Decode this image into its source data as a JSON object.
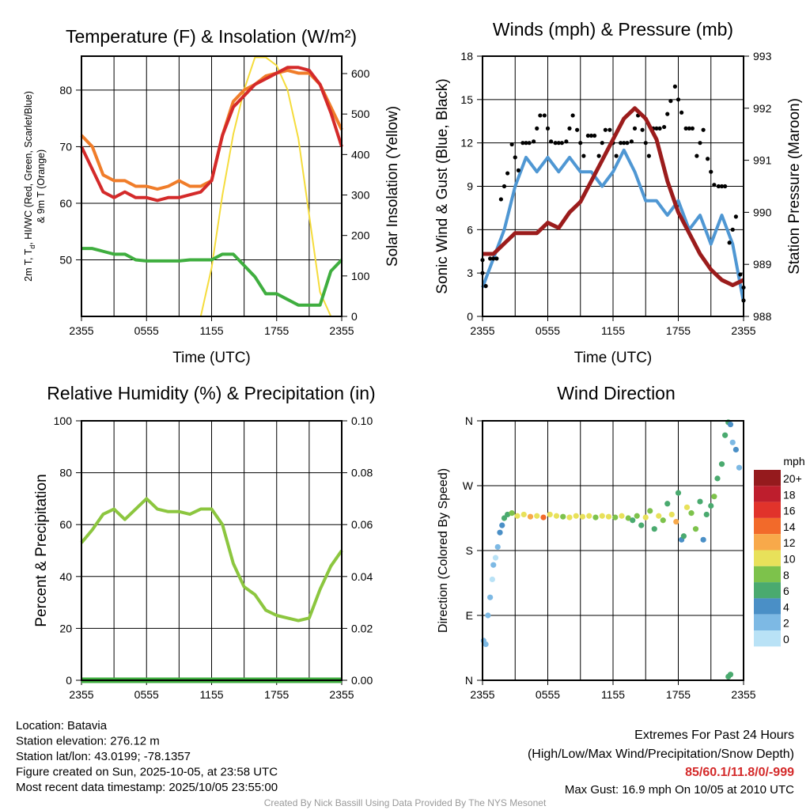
{
  "chart_data": [
    {
      "type": "line",
      "title": "Temperature (F) & Insolation (W/m²)",
      "xlabel": "Time (UTC)",
      "ylabel_parts": [
        "2m T, T",
        "d",
        ", HI/WC (Red, Green, Scarlet/Blue)",
        "& 9m T (Orange)"
      ],
      "y2label": "Solar Insolation (Yellow)",
      "x_ticks": [
        "2355",
        "0555",
        "1155",
        "1755",
        "2355"
      ],
      "x_hours": [
        0,
        1,
        2,
        3,
        4,
        5,
        6,
        7,
        8,
        9,
        10,
        11,
        12,
        13,
        14,
        15,
        16,
        17,
        18,
        19,
        20,
        21,
        22,
        23,
        24
      ],
      "ylim": [
        40,
        86
      ],
      "y_ticks": [
        50,
        60,
        70,
        80
      ],
      "y2lim": [
        0,
        643
      ],
      "y2_ticks": [
        0,
        100,
        200,
        300,
        400,
        500,
        600
      ],
      "series": [
        {
          "name": "Solar Insolation",
          "axis": "y2",
          "color": "#f5dc3c",
          "values": [
            0,
            0,
            0,
            0,
            0,
            0,
            0,
            0,
            0,
            0,
            0,
            0,
            120,
            300,
            450,
            560,
            640,
            640,
            620,
            560,
            440,
            250,
            60,
            0,
            0
          ]
        },
        {
          "name": "Dewpoint",
          "axis": "y",
          "color": "#3fae3f",
          "values": [
            52,
            52,
            51.5,
            51,
            51,
            50,
            49.8,
            49.8,
            49.8,
            49.8,
            50,
            50,
            50,
            51,
            51,
            49,
            47,
            44,
            44,
            43,
            42,
            42,
            42,
            48,
            50
          ]
        },
        {
          "name": "9m Temperature",
          "axis": "y",
          "color": "#f07d2a",
          "values": [
            72,
            70,
            65,
            64,
            64,
            63,
            63,
            62.5,
            63,
            64,
            63,
            63,
            64,
            72,
            78,
            80,
            81,
            82.5,
            83,
            83.5,
            83,
            83,
            81,
            77,
            73
          ]
        },
        {
          "name": "2m Temperature",
          "axis": "y",
          "color": "#d42a2a",
          "values": [
            70,
            66,
            62,
            61,
            62,
            61,
            61,
            60.5,
            61,
            61,
            61.5,
            62,
            64,
            72,
            77,
            79,
            81,
            82,
            83,
            84,
            84,
            83.5,
            81,
            76,
            70
          ]
        }
      ]
    },
    {
      "type": "line",
      "title": "Winds (mph) & Pressure (mb)",
      "xlabel": "Time (UTC)",
      "ylabel": "Sonic Wind & Gust (Blue, Black)",
      "y2label": "Station Pressure (Maroon)",
      "x_ticks": [
        "2355",
        "0555",
        "1155",
        "1755",
        "2355"
      ],
      "x_hours": [
        0,
        1,
        2,
        3,
        4,
        5,
        6,
        7,
        8,
        9,
        10,
        11,
        12,
        13,
        14,
        15,
        16,
        17,
        18,
        19,
        20,
        21,
        22,
        23,
        24
      ],
      "ylim": [
        0,
        18
      ],
      "y_ticks": [
        0,
        3,
        6,
        9,
        12,
        15,
        18
      ],
      "y2lim": [
        988,
        993
      ],
      "y2_ticks": [
        988,
        989,
        990,
        991,
        992,
        993
      ],
      "series": [
        {
          "name": "Sonic Wind",
          "axis": "y",
          "color": "#4f97d3",
          "kind": "line",
          "values": [
            2,
            4,
            6,
            9,
            11,
            10,
            11,
            10,
            11,
            10,
            10,
            9,
            10,
            11.5,
            10,
            8,
            8,
            7,
            8,
            6,
            7,
            5,
            7,
            5,
            1
          ]
        },
        {
          "name": "Gust",
          "axis": "y",
          "color": "#000000",
          "kind": "points",
          "values": [
            3,
            4,
            9,
            11,
            12,
            13,
            13,
            12,
            13,
            12,
            12.5,
            12,
            12,
            12,
            13,
            12,
            13,
            14,
            15,
            13,
            12,
            10,
            9,
            6,
            2
          ]
        },
        {
          "name": "Station Pressure",
          "axis": "y2",
          "color": "#9b1c1c",
          "kind": "line",
          "values": [
            989.2,
            989.2,
            989.4,
            989.6,
            989.6,
            989.6,
            989.8,
            989.7,
            990.0,
            990.2,
            990.6,
            991.0,
            991.4,
            991.8,
            992.0,
            991.8,
            991.4,
            990.6,
            990.0,
            989.6,
            989.2,
            988.9,
            988.7,
            988.6,
            988.7
          ]
        }
      ]
    },
    {
      "type": "line",
      "title": "Relative Humidity (%) & Precipitation (in)",
      "xlabel": "",
      "ylabel": "Percent & Precipitation",
      "x_ticks": [
        "2355",
        "0555",
        "1155",
        "1755",
        "2355"
      ],
      "x_hours": [
        0,
        1,
        2,
        3,
        4,
        5,
        6,
        7,
        8,
        9,
        10,
        11,
        12,
        13,
        14,
        15,
        16,
        17,
        18,
        19,
        20,
        21,
        22,
        23,
        24
      ],
      "ylim": [
        0,
        100
      ],
      "y_ticks": [
        0,
        20,
        40,
        60,
        80,
        100
      ],
      "y2lim": [
        0,
        0.1
      ],
      "y2_ticks": [
        "0.00",
        "0.02",
        "0.04",
        "0.06",
        "0.08",
        "0.10"
      ],
      "series": [
        {
          "name": "Relative Humidity",
          "axis": "y",
          "color": "#8cc63f",
          "values": [
            53,
            58,
            64,
            66,
            62,
            66,
            70,
            66,
            65,
            65,
            64,
            66,
            66,
            60,
            45,
            36,
            33,
            27,
            25,
            24,
            23,
            24,
            35,
            44,
            50
          ]
        },
        {
          "name": "Precipitation",
          "axis": "y2",
          "color": "#3fae3f",
          "values": [
            0,
            0,
            0,
            0,
            0,
            0,
            0,
            0,
            0,
            0,
            0,
            0,
            0,
            0,
            0,
            0,
            0,
            0,
            0,
            0,
            0,
            0,
            0,
            0,
            0
          ]
        }
      ]
    },
    {
      "type": "scatter",
      "title": "Wind Direction",
      "xlabel": "",
      "ylabel": "Direction (Colored By Speed)",
      "x_ticks": [
        "2355",
        "0555",
        "1155",
        "1755",
        "2355"
      ],
      "ylim": [
        0,
        360
      ],
      "y_ticks": [
        {
          "v": 0,
          "label": "N"
        },
        {
          "v": 90,
          "label": "E"
        },
        {
          "v": 180,
          "label": "S"
        },
        {
          "v": 270,
          "label": "W"
        },
        {
          "v": 360,
          "label": "N"
        }
      ],
      "points": [
        [
          0.1,
          55,
          3
        ],
        [
          0.3,
          50,
          3
        ],
        [
          0.5,
          90,
          2
        ],
        [
          0.7,
          115,
          2
        ],
        [
          0.9,
          140,
          1
        ],
        [
          1.0,
          160,
          2
        ],
        [
          1.2,
          170,
          1
        ],
        [
          1.4,
          185,
          3
        ],
        [
          1.6,
          205,
          4
        ],
        [
          1.8,
          215,
          4
        ],
        [
          2.0,
          225,
          6
        ],
        [
          2.3,
          230,
          6
        ],
        [
          2.7,
          232,
          8
        ],
        [
          3.2,
          228,
          10
        ],
        [
          3.8,
          230,
          10
        ],
        [
          4.4,
          227,
          12
        ],
        [
          5,
          228,
          10
        ],
        [
          5.6,
          226,
          14
        ],
        [
          6.2,
          230,
          10
        ],
        [
          6.8,
          228,
          10
        ],
        [
          7.4,
          227,
          8
        ],
        [
          8,
          226,
          10
        ],
        [
          8.6,
          228,
          10
        ],
        [
          9.2,
          227,
          10
        ],
        [
          9.8,
          228,
          10
        ],
        [
          10.4,
          226,
          8
        ],
        [
          11,
          228,
          10
        ],
        [
          11.6,
          227,
          10
        ],
        [
          12.2,
          226,
          8
        ],
        [
          12.8,
          228,
          10
        ],
        [
          13.4,
          225,
          8
        ],
        [
          13.8,
          222,
          6
        ],
        [
          14.2,
          228,
          8
        ],
        [
          14.6,
          215,
          6
        ],
        [
          15,
          226,
          10
        ],
        [
          15.4,
          235,
          8
        ],
        [
          15.8,
          210,
          6
        ],
        [
          16.2,
          228,
          10
        ],
        [
          16.6,
          222,
          8
        ],
        [
          17,
          245,
          6
        ],
        [
          17.4,
          230,
          10
        ],
        [
          17.8,
          220,
          12
        ],
        [
          18,
          260,
          6
        ],
        [
          18.3,
          195,
          4
        ],
        [
          18.5,
          200,
          6
        ],
        [
          18.8,
          240,
          10
        ],
        [
          19.2,
          232,
          8
        ],
        [
          19.6,
          210,
          8
        ],
        [
          20,
          248,
          6
        ],
        [
          20.3,
          195,
          4
        ],
        [
          20.6,
          230,
          6
        ],
        [
          21,
          242,
          6
        ],
        [
          21.3,
          255,
          8
        ],
        [
          21.6,
          280,
          6
        ],
        [
          22.0,
          300,
          6
        ],
        [
          22.3,
          340,
          6
        ],
        [
          22.6,
          358,
          6
        ],
        [
          22.8,
          355,
          4
        ],
        [
          23.0,
          330,
          2
        ],
        [
          23.3,
          320,
          4
        ],
        [
          23.6,
          295,
          2
        ],
        [
          22.6,
          5,
          6
        ],
        [
          22.8,
          8,
          6
        ]
      ],
      "legend": {
        "title": "mph",
        "labels": [
          "20+",
          "18",
          "16",
          "14",
          "12",
          "10",
          "8",
          "6",
          "4",
          "2",
          "0"
        ],
        "colors": [
          "#951a1d",
          "#be1e2d",
          "#e1332b",
          "#f26a2a",
          "#f8a94a",
          "#e8e15a",
          "#7dc24b",
          "#4aaa6f",
          "#4a8fc6",
          "#7db9e4",
          "#b9e2f6"
        ]
      }
    }
  ],
  "info": {
    "location": "Location: Batavia",
    "elevation": "Station elevation: 276.12 m",
    "latlon": "Station lat/lon: 43.0199; -78.1357",
    "created": "Figure created on Sun, 2025-10-05, at 23:58 UTC",
    "recent": "Most recent data timestamp: 2025/10/05 23:55:00"
  },
  "extremes": {
    "title": "Extremes For Past 24 Hours",
    "subtitle": "(High/Low/Max Wind/Precipitation/Snow Depth)",
    "values": "85/60.1/11.8/0/-999",
    "values_color": "#d42a2a",
    "max_gust": "Max Gust: 16.9 mph On 10/05 at 2010 UTC"
  },
  "credit": "Created By Nick Bassill Using Data Provided By The NYS Mesonet"
}
